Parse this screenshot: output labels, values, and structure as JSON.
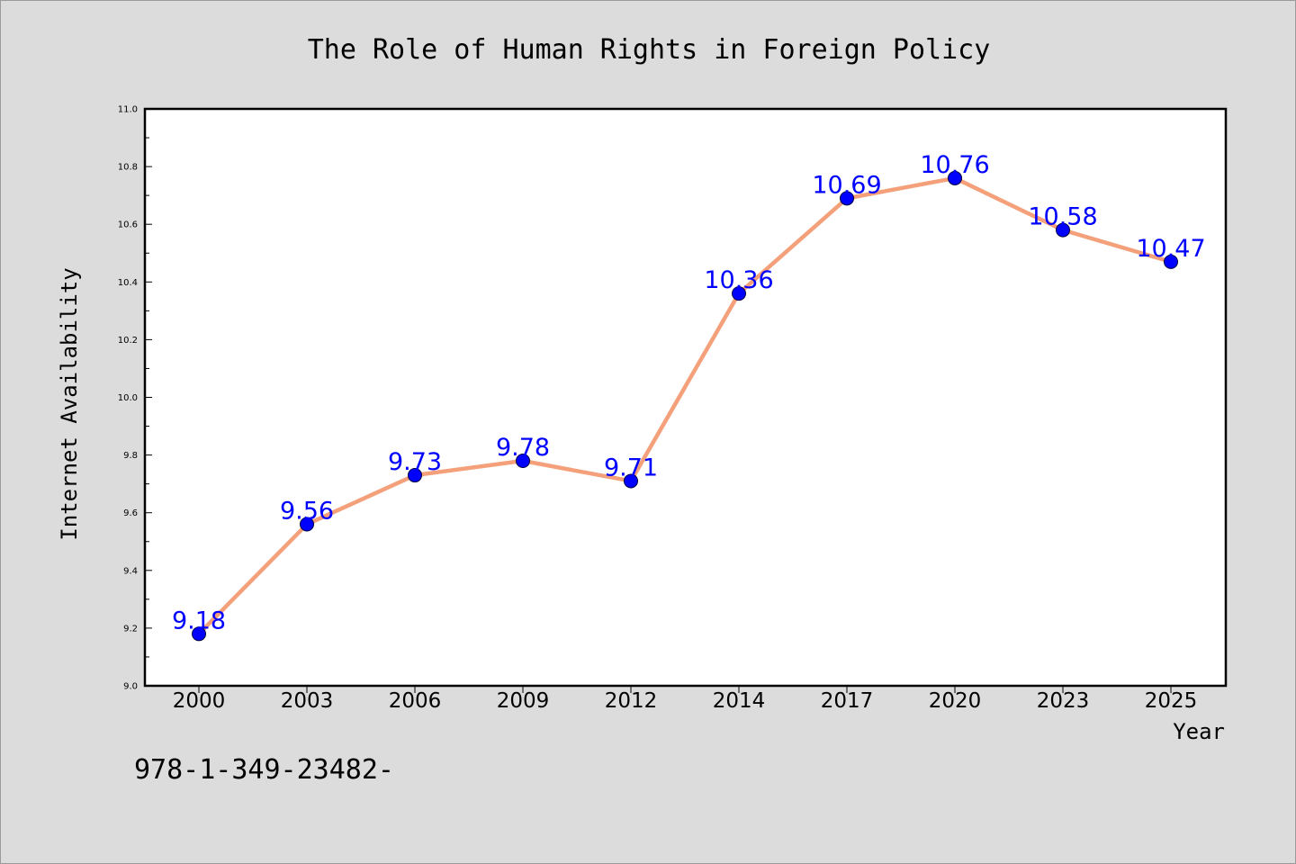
{
  "chart_data": {
    "type": "line",
    "title": "The Role of Human Rights in Foreign Policy",
    "xlabel": "Year",
    "ylabel": "Internet Availability",
    "categories": [
      "2000",
      "2003",
      "2006",
      "2009",
      "2012",
      "2014",
      "2017",
      "2020",
      "2023",
      "2025"
    ],
    "series": [
      {
        "values": [
          9.18,
          9.56,
          9.73,
          9.78,
          9.71,
          10.36,
          10.69,
          10.76,
          10.58,
          10.47
        ],
        "labels": [
          "9.18",
          "9.56",
          "9.73",
          "9.78",
          "9.71",
          "10.36",
          "10.69",
          "10.76",
          "10.58",
          "10.47"
        ]
      }
    ],
    "ylim": [
      9.0,
      11.0
    ],
    "yticks": [
      "9.0",
      "9.2",
      "9.4",
      "9.6",
      "9.8",
      "10.0",
      "10.2",
      "10.4",
      "10.6",
      "10.8",
      "11.0"
    ],
    "grid": false,
    "colors": {
      "line": "#f4a07a",
      "marker": "#0000ff",
      "data_label": "#0000ff",
      "plot_background": "#ffffff",
      "figure_background": "#dcdcdc"
    }
  },
  "footnote": "978-1-349-23482-"
}
